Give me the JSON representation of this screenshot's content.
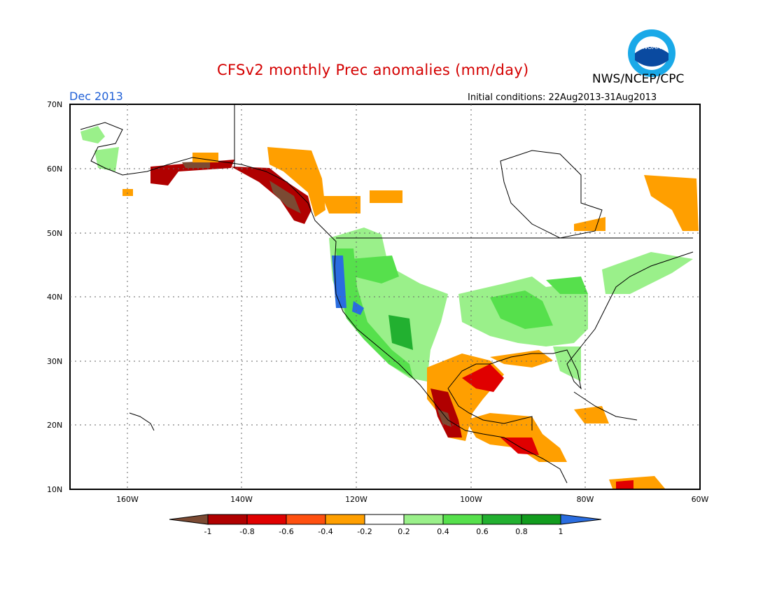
{
  "header": {
    "title": "CFSv2 monthly Prec anomalies (mm/day)",
    "title_color": "#d40000",
    "agency": "NWS/NCEP/CPC",
    "logo_text": "NOAA",
    "month": "Dec 2013",
    "month_color": "#1f5fd6",
    "initial_conditions": "Initial conditions: 22Aug2013-31Aug2013"
  },
  "map": {
    "projection": "lat-lon",
    "lon_range": [
      -170,
      -60
    ],
    "lat_range": [
      10,
      70
    ],
    "lat_ticks": [
      "10N",
      "20N",
      "30N",
      "40N",
      "50N",
      "60N",
      "70N"
    ],
    "lon_ticks": [
      "160W",
      "140W",
      "120W",
      "100W",
      "80W",
      "60W"
    ],
    "grid": "dotted"
  },
  "legend": {
    "labels": [
      "-1",
      "-0.8",
      "-0.6",
      "-0.4",
      "-0.2",
      "0.2",
      "0.4",
      "0.6",
      "0.8",
      "1"
    ],
    "colors": [
      "#7b4a33",
      "#b00000",
      "#e00000",
      "#ff5010",
      "#ff9f00",
      "#ffffff",
      "#9af08a",
      "#56e04c",
      "#22b030",
      "#129c1e",
      "#2a6de0"
    ]
  }
}
